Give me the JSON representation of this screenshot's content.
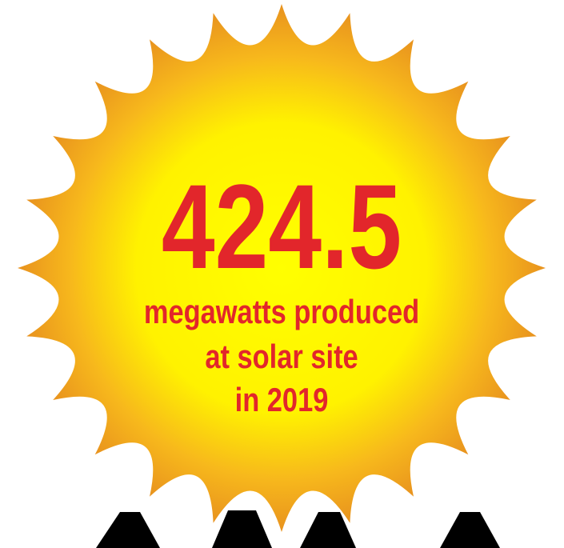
{
  "headline": {
    "value": "424.5",
    "lines": [
      "megawatts produced",
      "at solar site",
      "in 2019"
    ]
  }
}
